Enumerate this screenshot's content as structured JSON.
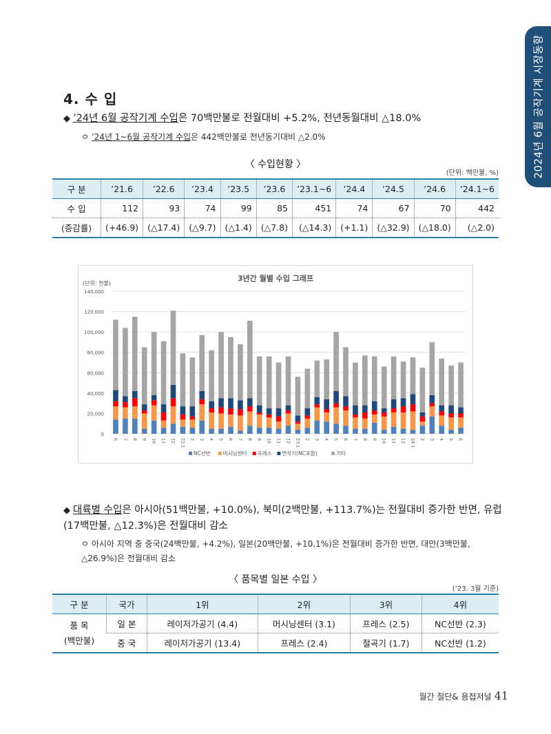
{
  "side_tab": "2024년 6월 공작기계 시장동향",
  "section_title": "4. 수 입",
  "bullet1": {
    "underlined": "’24년 6월 공작기계 수입",
    "rest": "은 70백만불로 전월대비 +5.2%, 전년동월대비 △18.0%"
  },
  "sub1": {
    "prefix": "ㅇ ",
    "underlined": "’24년 1~6월 공작기계 수입",
    "rest": "은 442백만불로 전년동기대비 △2.0%"
  },
  "table1": {
    "caption": "〈 수입현황 〉",
    "unit": "(단위: 백만불, %)",
    "headers": [
      "구 분",
      "’21.6",
      "’22.6",
      "’23.4",
      "’23.5",
      "’23.6",
      "’23.1~6",
      "’24.4",
      "’24.5",
      "’24.6",
      "’24.1~6"
    ],
    "rows": [
      [
        "수 입",
        "112",
        "93",
        "74",
        "99",
        "85",
        "451",
        "74",
        "67",
        "70",
        "442"
      ],
      [
        "(증감률)",
        "(+46.9)",
        "(△17.4)",
        "(△9.7)",
        "(△1.4)",
        "(△7.8)",
        "(△14.3)",
        "(+1.1)",
        "(△32.9)",
        "(△18.0)",
        "(△2.0)"
      ]
    ]
  },
  "chart_data": {
    "type": "bar",
    "title": "3년간 월별 수입 그래프",
    "unit_label": "(단위: 천불)",
    "ylim": [
      0,
      140000
    ],
    "yticks": [
      "0",
      "20,000",
      "40,000",
      "60,000",
      "80,000",
      "100,000",
      "120,000",
      "140,000"
    ],
    "ytick_values": [
      0,
      20000,
      40000,
      60000,
      80000,
      100000,
      120000,
      140000
    ],
    "categories": [
      "6",
      "7",
      "8",
      "9",
      "10",
      "11",
      "12",
      "22.1",
      "2",
      "3",
      "4",
      "5",
      "6",
      "7",
      "8",
      "9",
      "10",
      "11",
      "12",
      "23.1",
      "2",
      "3",
      "4",
      "5",
      "6",
      "7",
      "8",
      "9",
      "10",
      "11",
      "12",
      "24.1",
      "2",
      "3",
      "4",
      "5",
      "6"
    ],
    "series": [
      {
        "name": "NC선반",
        "color": "#4f81bd",
        "values": [
          14000,
          15000,
          15000,
          5000,
          13000,
          6000,
          10000,
          7000,
          6000,
          13000,
          5000,
          5000,
          7000,
          3000,
          8000,
          6000,
          6000,
          5000,
          8000,
          4000,
          6000,
          13000,
          12000,
          10000,
          8000,
          5000,
          5000,
          11000,
          4000,
          7000,
          5000,
          4000,
          8000,
          17000,
          8000,
          4000,
          6000
        ]
      },
      {
        "name": "머시닝센터",
        "color": "#f79646",
        "values": [
          13000,
          11000,
          12000,
          15000,
          15000,
          7000,
          17000,
          7000,
          8000,
          16000,
          16000,
          15000,
          12000,
          15000,
          14000,
          13000,
          10000,
          7000,
          12000,
          6000,
          9000,
          13000,
          9000,
          16000,
          15000,
          11000,
          10000,
          8000,
          13000,
          14000,
          16000,
          18000,
          4000,
          10000,
          10000,
          12000,
          10000
        ]
      },
      {
        "name": "프레스",
        "color": "#ff0000",
        "values": [
          5000,
          5000,
          8000,
          3000,
          5000,
          8000,
          8000,
          5000,
          3000,
          5000,
          4000,
          6000,
          6000,
          6000,
          5000,
          2000,
          3000,
          5000,
          3000,
          2000,
          3000,
          3000,
          3000,
          4000,
          4000,
          3000,
          6000,
          4000,
          4000,
          4000,
          6000,
          7000,
          5000,
          3000,
          4000,
          4000,
          4000
        ]
      },
      {
        "name": "연삭기(NC포함)",
        "color": "#1f497d",
        "values": [
          11000,
          6000,
          7000,
          6000,
          5000,
          8000,
          13000,
          8000,
          10000,
          8000,
          7000,
          9000,
          10000,
          9000,
          8000,
          7000,
          6000,
          8000,
          5000,
          6000,
          7000,
          7000,
          10000,
          12000,
          10000,
          9000,
          7000,
          9000,
          4000,
          9000,
          8000,
          10000,
          4000,
          8000,
          6000,
          8000,
          6000
        ]
      },
      {
        "name": "기타",
        "color": "#a5a5a5",
        "values": [
          69000,
          67000,
          73000,
          56000,
          62000,
          62000,
          73000,
          52000,
          48000,
          55000,
          50000,
          65000,
          60000,
          55000,
          76000,
          48000,
          51000,
          45000,
          48000,
          38000,
          39000,
          36000,
          39000,
          58000,
          48000,
          42000,
          49000,
          44000,
          41000,
          42000,
          36000,
          36000,
          44000,
          52000,
          46000,
          39000,
          44000
        ]
      }
    ]
  },
  "bullet2": {
    "underlined": "대륙별 수입",
    "rest": "은 아시아(51백만불, +10.0%), 북미(2백만불, +113.7%)는 전월대비 증가한 반면, 유럽(17백만불, △12.3%)은 전월대비 감소"
  },
  "sub2": "ㅇ 아시아 지역 중 중국(24백만불, +4.2%), 일본(20백만불, +10.1%)은 전월대비 증가한 반면, 대만(3백만불, △26.9%)은 전월대비 감소",
  "table2": {
    "caption": "〈 품목별 일본 수입 〉",
    "unit": "(’23. 3월 기준)",
    "headers": [
      "구 분",
      "국가",
      "1위",
      "2위",
      "3위",
      "4위"
    ],
    "group_label_1": "품 목",
    "group_label_2": "(백만불)",
    "rows": [
      [
        "일 본",
        "레이저가공기 (4.4)",
        "머시닝센터 (3.1)",
        "프레스 (2.5)",
        "NC선반 (2.3)"
      ],
      [
        "중 국",
        "레이저가공기 (13.4)",
        "프레스 (2.4)",
        "절곡기 (1.7)",
        "NC선반 (1.2)"
      ]
    ]
  },
  "footer": {
    "journal": "월간 절단& 용접저널",
    "page": "41"
  }
}
